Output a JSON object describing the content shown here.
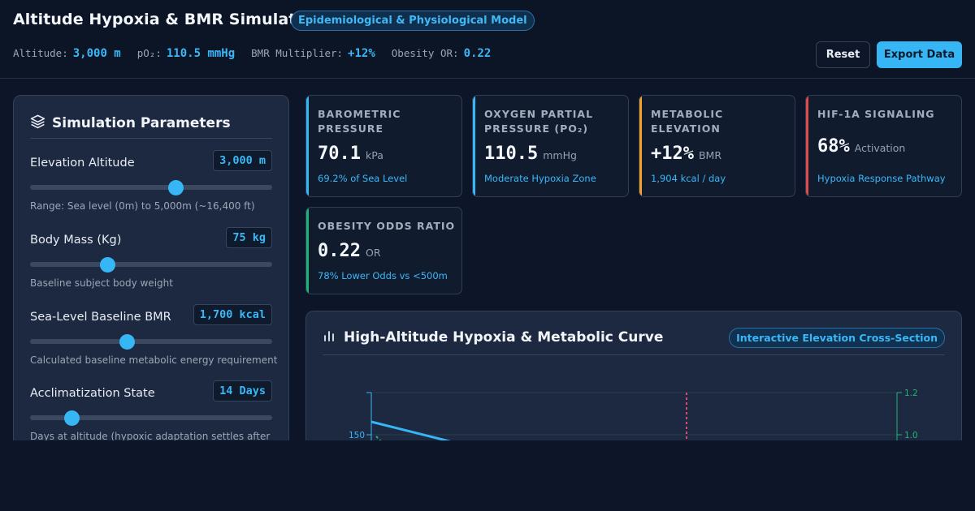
{
  "header": {
    "title": "Altitude Hypoxia & BMR Simulator",
    "badge": "Epidemiological & Physiological Model",
    "stats": [
      {
        "label": "Altitude:",
        "value": "3,000 m"
      },
      {
        "label": "pO₂:",
        "value": "110.5 mmHg"
      },
      {
        "label": "BMR Multiplier:",
        "value": "+12%"
      },
      {
        "label": "Obesity OR:",
        "value": "0.22"
      }
    ],
    "reset_label": "Reset",
    "export_label": "Export Data"
  },
  "sidebar": {
    "title": "Simulation Parameters",
    "params": [
      {
        "label": "Elevation Altitude",
        "value": "3,000 m",
        "slider_fraction": 0.6,
        "hint": "Range: Sea level (0m) to 5,000m (~16,400 ft)"
      },
      {
        "label": "Body Mass (Kg)",
        "value": "75 kg",
        "slider_fraction": 0.32,
        "hint": "Baseline subject body weight"
      },
      {
        "label": "Sea-Level Baseline BMR",
        "value": "1,700 kcal",
        "slider_fraction": 0.4,
        "hint": "Calculated baseline metabolic energy requirement"
      },
      {
        "label": "Acclimatization State",
        "value": "14 Days",
        "slider_fraction": 0.17,
        "hint": "Days at altitude (hypoxic adaptation settles after"
      }
    ]
  },
  "cards": [
    {
      "title": "BAROMETRIC PRESSURE",
      "value": "70.1",
      "unit": "kPa",
      "sub": "69.2% of Sea Level",
      "accent": "#36b6f5"
    },
    {
      "title": "OXYGEN PARTIAL PRESSURE (PO₂)",
      "value": "110.5",
      "unit": "mmHg",
      "sub": "Moderate Hypoxia Zone",
      "accent": "#36b6f5"
    },
    {
      "title": "METABOLIC ELEVATION",
      "value": "+12%",
      "unit": "BMR",
      "sub": "1,904 kcal / day",
      "accent": "#f0a12a"
    },
    {
      "title": "HIF-1A SIGNALING",
      "value": "68%",
      "unit": "Activation",
      "sub": "Hypoxia Response Pathway",
      "accent": "#e04a4a"
    },
    {
      "title": "OBESITY ODDS RATIO",
      "value": "0.22",
      "unit": "OR",
      "sub": "78% Lower Odds vs <500m",
      "accent": "#1fb37a"
    }
  ],
  "chart_panel": {
    "title": "High-Altitude Hypoxia & Metabolic Curve",
    "badge": "Interactive Elevation Cross-Section"
  },
  "chart_data": {
    "type": "line",
    "title": "",
    "left_axis": {
      "tick_labels": [
        "150"
      ],
      "color": "#36b6f5"
    },
    "right_axis": {
      "tick_labels": [
        "1.2",
        "1.0"
      ],
      "color": "#1fb37a"
    },
    "series": [],
    "marker_line": {
      "color": "#e04a6a",
      "style": "dashed"
    }
  },
  "colors": {
    "accent": "#36b6f5",
    "background": "#0d1628",
    "panel": "#1d2940"
  },
  "icons": {
    "panel": "layers-icon",
    "chart": "bar-chart-icon"
  }
}
